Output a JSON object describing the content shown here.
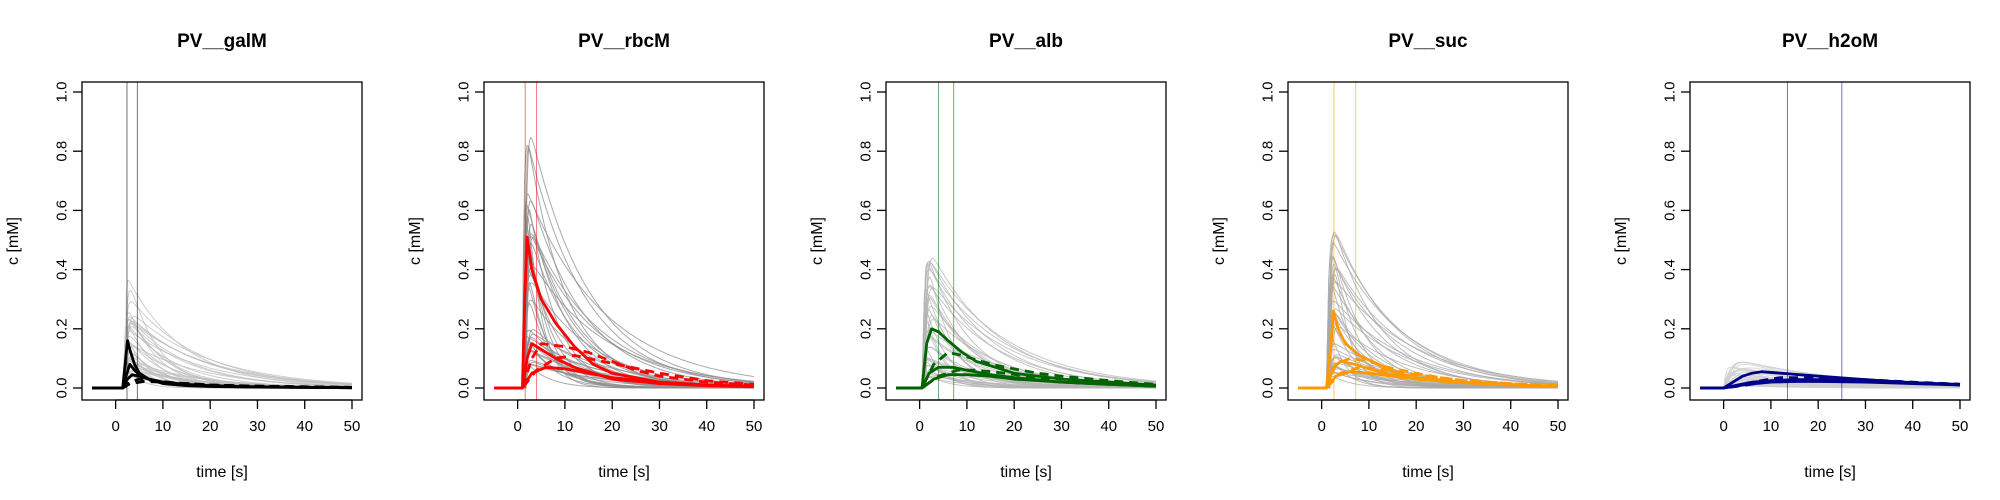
{
  "chart_data": [
    {
      "type": "line",
      "title": "PV__galM",
      "xlabel": "time [s]",
      "ylabel": "c [mM]",
      "xlim": [
        -5,
        50
      ],
      "ylim": [
        0,
        1
      ],
      "xticks": [
        0,
        10,
        20,
        30,
        40,
        50
      ],
      "yticks": [
        0.0,
        0.2,
        0.4,
        0.6,
        0.8,
        1.0
      ],
      "xtick_labels": [
        "0",
        "10",
        "20",
        "30",
        "40",
        "50"
      ],
      "ytick_labels": [
        "0.0",
        "0.2",
        "0.4",
        "0.6",
        "0.8",
        "1.0"
      ],
      "grid": false,
      "color": "#000000",
      "band_color": "#bdbdbd",
      "vlines": [
        2.4,
        4.6
      ],
      "background_peak": 0.45,
      "background_onset": 1.5,
      "series": [
        {
          "style": "solid",
          "x": [
            -5,
            0,
            1.5,
            2.0,
            2.5,
            3.0,
            4,
            5,
            7,
            10,
            15,
            20,
            30,
            40,
            50
          ],
          "y": [
            0,
            0,
            0,
            0.08,
            0.16,
            0.13,
            0.08,
            0.05,
            0.03,
            0.015,
            0.008,
            0.005,
            0.003,
            0.002,
            0.001
          ]
        },
        {
          "style": "solid",
          "x": [
            -5,
            0,
            1.5,
            2.2,
            3.0,
            4,
            5,
            7,
            10,
            15,
            20,
            30,
            40,
            50
          ],
          "y": [
            0,
            0,
            0,
            0.04,
            0.08,
            0.06,
            0.045,
            0.03,
            0.018,
            0.01,
            0.006,
            0.003,
            0.002,
            0.001
          ]
        },
        {
          "style": "solid",
          "x": [
            -5,
            0,
            1.5,
            2.5,
            3.5,
            5,
            7,
            10,
            15,
            20,
            30,
            40,
            50
          ],
          "y": [
            0,
            0,
            0,
            0.03,
            0.045,
            0.04,
            0.03,
            0.02,
            0.012,
            0.008,
            0.004,
            0.002,
            0.001
          ]
        },
        {
          "style": "dashed",
          "x": [
            -5,
            0,
            1.5,
            3,
            5,
            8,
            12,
            20,
            30,
            40,
            50
          ],
          "y": [
            0,
            0,
            0,
            0.02,
            0.03,
            0.025,
            0.018,
            0.01,
            0.006,
            0.004,
            0.002
          ]
        },
        {
          "style": "dashed",
          "x": [
            -5,
            0,
            1.5,
            3,
            6,
            10,
            15,
            20,
            30,
            40,
            50
          ],
          "y": [
            0,
            0,
            0,
            0.015,
            0.022,
            0.02,
            0.015,
            0.01,
            0.006,
            0.004,
            0.002
          ]
        }
      ]
    },
    {
      "type": "line",
      "title": "PV__rbcM",
      "xlabel": "time [s]",
      "ylabel": "c [mM]",
      "xlim": [
        -5,
        50
      ],
      "ylim": [
        0,
        1
      ],
      "xticks": [
        0,
        10,
        20,
        30,
        40,
        50
      ],
      "yticks": [
        0.0,
        0.2,
        0.4,
        0.6,
        0.8,
        1.0
      ],
      "xtick_labels": [
        "0",
        "10",
        "20",
        "30",
        "40",
        "50"
      ],
      "ytick_labels": [
        "0.0",
        "0.2",
        "0.4",
        "0.6",
        "0.8",
        "1.0"
      ],
      "grid": false,
      "color": "#ff0000",
      "band_color": "#8c8c8c",
      "vlines": [
        1.6,
        4.0
      ],
      "background_peak": 1.0,
      "background_onset": 1.0,
      "series": [
        {
          "style": "solid",
          "x": [
            -5,
            0,
            1.0,
            1.5,
            2.0,
            3,
            5,
            8,
            12,
            16,
            20,
            30,
            40,
            50
          ],
          "y": [
            0,
            0,
            0,
            0.3,
            0.51,
            0.4,
            0.3,
            0.22,
            0.14,
            0.08,
            0.05,
            0.02,
            0.01,
            0.005
          ]
        },
        {
          "style": "solid",
          "x": [
            -5,
            0,
            1.0,
            2.0,
            3.0,
            5,
            8,
            12,
            16,
            20,
            30,
            40,
            50
          ],
          "y": [
            0,
            0,
            0,
            0.1,
            0.15,
            0.13,
            0.1,
            0.07,
            0.05,
            0.03,
            0.015,
            0.008,
            0.004
          ]
        },
        {
          "style": "dashed",
          "x": [
            -5,
            0,
            1.0,
            3,
            5,
            10,
            15,
            20,
            25,
            30,
            40,
            50
          ],
          "y": [
            0,
            0,
            0,
            0.1,
            0.15,
            0.14,
            0.12,
            0.09,
            0.06,
            0.04,
            0.02,
            0.01
          ]
        },
        {
          "style": "dashed",
          "x": [
            -5,
            0,
            1.0,
            4,
            8,
            12,
            18,
            24,
            30,
            40,
            50
          ],
          "y": [
            0,
            0,
            0,
            0.06,
            0.1,
            0.11,
            0.09,
            0.07,
            0.05,
            0.025,
            0.012
          ]
        },
        {
          "style": "solid",
          "x": [
            -5,
            0,
            1.0,
            3,
            6,
            10,
            15,
            20,
            30,
            40,
            50
          ],
          "y": [
            0,
            0,
            0,
            0.05,
            0.07,
            0.065,
            0.05,
            0.035,
            0.02,
            0.01,
            0.005
          ]
        }
      ]
    },
    {
      "type": "line",
      "title": "PV__alb",
      "xlabel": "time [s]",
      "ylabel": "c [mM]",
      "xlim": [
        -5,
        50
      ],
      "ylim": [
        0,
        1
      ],
      "xticks": [
        0,
        10,
        20,
        30,
        40,
        50
      ],
      "yticks": [
        0.0,
        0.2,
        0.4,
        0.6,
        0.8,
        1.0
      ],
      "xtick_labels": [
        "0",
        "10",
        "20",
        "30",
        "40",
        "50"
      ],
      "ytick_labels": [
        "0.0",
        "0.2",
        "0.4",
        "0.6",
        "0.8",
        "1.0"
      ],
      "grid": false,
      "color": "#006400",
      "band_color": "#b4b4b4",
      "vlines": [
        4.0,
        7.2
      ],
      "background_peak": 0.52,
      "background_onset": 0.5,
      "series": [
        {
          "style": "solid",
          "x": [
            -5,
            0,
            0.5,
            1.5,
            2.5,
            4,
            6,
            9,
            12,
            16,
            20,
            30,
            40,
            50
          ],
          "y": [
            0,
            0,
            0,
            0.15,
            0.2,
            0.19,
            0.16,
            0.12,
            0.09,
            0.07,
            0.05,
            0.03,
            0.02,
            0.01
          ]
        },
        {
          "style": "solid",
          "x": [
            -5,
            0,
            0.5,
            2,
            4,
            7,
            10,
            15,
            20,
            30,
            40,
            50
          ],
          "y": [
            0,
            0,
            0,
            0.05,
            0.07,
            0.07,
            0.06,
            0.045,
            0.035,
            0.02,
            0.012,
            0.006
          ]
        },
        {
          "style": "dashed",
          "x": [
            -5,
            0,
            0.5,
            3,
            6,
            9,
            13,
            18,
            25,
            30,
            40,
            50
          ],
          "y": [
            0,
            0,
            0,
            0.08,
            0.12,
            0.11,
            0.09,
            0.07,
            0.05,
            0.04,
            0.025,
            0.012
          ]
        },
        {
          "style": "dashed",
          "x": [
            -5,
            0,
            0.5,
            4,
            8,
            12,
            18,
            25,
            30,
            40,
            50
          ],
          "y": [
            0,
            0,
            0,
            0.04,
            0.06,
            0.06,
            0.05,
            0.035,
            0.03,
            0.018,
            0.01
          ]
        },
        {
          "style": "solid",
          "x": [
            -5,
            0,
            0.5,
            3,
            6,
            10,
            15,
            20,
            30,
            40,
            50
          ],
          "y": [
            0,
            0,
            0,
            0.03,
            0.045,
            0.045,
            0.04,
            0.03,
            0.02,
            0.012,
            0.006
          ]
        }
      ]
    },
    {
      "type": "line",
      "title": "PV__suc",
      "xlabel": "time [s]",
      "ylabel": "c [mM]",
      "xlim": [
        -5,
        50
      ],
      "ylim": [
        0,
        1
      ],
      "xticks": [
        0,
        10,
        20,
        30,
        40,
        50
      ],
      "yticks": [
        0.0,
        0.2,
        0.4,
        0.6,
        0.8,
        1.0
      ],
      "xtick_labels": [
        "0",
        "10",
        "20",
        "30",
        "40",
        "50"
      ],
      "ytick_labels": [
        "0.0",
        "0.2",
        "0.4",
        "0.6",
        "0.8",
        "1.0"
      ],
      "grid": false,
      "color": "#ff9900",
      "band_color": "#a8a8a8",
      "vlines": [
        2.6,
        7.2
      ],
      "background_peak": 0.63,
      "background_onset": 1.0,
      "series": [
        {
          "style": "solid",
          "x": [
            -5,
            0,
            1.0,
            2.0,
            2.5,
            3.5,
            5,
            8,
            12,
            16,
            20,
            30,
            40,
            50
          ],
          "y": [
            0,
            0,
            0,
            0.15,
            0.26,
            0.2,
            0.15,
            0.11,
            0.08,
            0.05,
            0.035,
            0.02,
            0.01,
            0.006
          ]
        },
        {
          "style": "solid",
          "x": [
            -5,
            0,
            1.0,
            2.5,
            4,
            7,
            10,
            15,
            20,
            30,
            40,
            50
          ],
          "y": [
            0,
            0,
            0,
            0.07,
            0.09,
            0.08,
            0.065,
            0.045,
            0.03,
            0.018,
            0.01,
            0.006
          ]
        },
        {
          "style": "dashed",
          "x": [
            -5,
            0,
            1.0,
            3,
            6,
            10,
            14,
            20,
            25,
            30,
            40,
            50
          ],
          "y": [
            0,
            0,
            0,
            0.08,
            0.1,
            0.09,
            0.07,
            0.05,
            0.035,
            0.025,
            0.015,
            0.008
          ]
        },
        {
          "style": "dashed",
          "x": [
            -5,
            0,
            1.0,
            4,
            8,
            12,
            18,
            25,
            30,
            40,
            50
          ],
          "y": [
            0,
            0,
            0,
            0.05,
            0.07,
            0.065,
            0.05,
            0.035,
            0.025,
            0.015,
            0.008
          ]
        },
        {
          "style": "solid",
          "x": [
            -5,
            0,
            1.0,
            3,
            6,
            10,
            15,
            20,
            30,
            40,
            50
          ],
          "y": [
            0,
            0,
            0,
            0.04,
            0.055,
            0.05,
            0.04,
            0.03,
            0.018,
            0.01,
            0.005
          ]
        }
      ]
    },
    {
      "type": "line",
      "title": "PV__h2oM",
      "xlabel": "time [s]",
      "ylabel": "c [mM]",
      "xlim": [
        -5,
        50
      ],
      "ylim": [
        0,
        1
      ],
      "xticks": [
        0,
        10,
        20,
        30,
        40,
        50
      ],
      "yticks": [
        0.0,
        0.2,
        0.4,
        0.6,
        0.8,
        1.0
      ],
      "xtick_labels": [
        "0",
        "10",
        "20",
        "30",
        "40",
        "50"
      ],
      "ytick_labels": [
        "0.0",
        "0.2",
        "0.4",
        "0.6",
        "0.8",
        "1.0"
      ],
      "grid": false,
      "color": "#00008b",
      "band_color": "#d0d0d0",
      "vlines": [
        13.5,
        25.0
      ],
      "background_peak": 0.13,
      "background_onset": 0.0,
      "series": [
        {
          "style": "solid",
          "x": [
            -5,
            0,
            2,
            4,
            6,
            8,
            12,
            16,
            20,
            30,
            40,
            50
          ],
          "y": [
            0,
            0,
            0.02,
            0.04,
            0.05,
            0.055,
            0.05,
            0.045,
            0.04,
            0.028,
            0.018,
            0.01
          ]
        },
        {
          "style": "solid",
          "x": [
            -5,
            0,
            3,
            6,
            10,
            15,
            20,
            25,
            30,
            40,
            50
          ],
          "y": [
            0,
            0,
            0.01,
            0.02,
            0.025,
            0.028,
            0.028,
            0.026,
            0.024,
            0.018,
            0.012
          ]
        },
        {
          "style": "dashed",
          "x": [
            -5,
            0,
            4,
            8,
            12,
            16,
            20,
            25,
            30,
            40,
            50
          ],
          "y": [
            0,
            0,
            0.01,
            0.025,
            0.035,
            0.035,
            0.033,
            0.03,
            0.026,
            0.018,
            0.012
          ]
        },
        {
          "style": "dashed",
          "x": [
            -5,
            0,
            4,
            8,
            14,
            20,
            26,
            30,
            40,
            50
          ],
          "y": [
            0,
            0,
            0.008,
            0.018,
            0.028,
            0.032,
            0.03,
            0.028,
            0.02,
            0.013
          ]
        },
        {
          "style": "solid",
          "x": [
            -5,
            0,
            5,
            10,
            15,
            20,
            30,
            40,
            50
          ],
          "y": [
            0,
            0,
            0.012,
            0.02,
            0.022,
            0.022,
            0.02,
            0.015,
            0.01
          ]
        }
      ]
    }
  ]
}
